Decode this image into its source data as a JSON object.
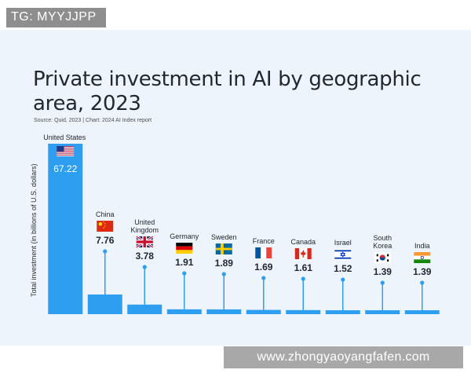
{
  "badge": {
    "text": "TG: MYYJJPP"
  },
  "watermark": {
    "text": "www.zhongyaoyangfafen.com"
  },
  "colors": {
    "bar": "#2e9ff0",
    "stem": "#2e9ff0",
    "card_bg": "#eef4fb",
    "text": "#222831"
  },
  "chart_data": {
    "type": "bar",
    "title": "Private investment in AI by geographic area, 2023",
    "subtitle": "Source: Quid, 2023 | Chart: 2024 AI Index report",
    "ylabel": "Total investment (in billions of U.S. dollars)",
    "xlabel": "",
    "ylim": [
      0,
      67.22
    ],
    "grid": false,
    "legend": "none",
    "categories": [
      "United States",
      "China",
      "United Kingdom",
      "Germany",
      "Sweden",
      "France",
      "Canada",
      "Israel",
      "South Korea",
      "India"
    ],
    "category_label_lines": [
      [
        "United States"
      ],
      [
        "China"
      ],
      [
        "United",
        "Kingdom"
      ],
      [
        "Germany"
      ],
      [
        "Sweden"
      ],
      [
        "France"
      ],
      [
        "Canada"
      ],
      [
        "Israel"
      ],
      [
        "South",
        "Korea"
      ],
      [
        "India"
      ]
    ],
    "values": [
      67.22,
      7.76,
      3.78,
      1.91,
      1.89,
      1.69,
      1.61,
      1.52,
      1.39,
      1.39
    ],
    "value_labels": [
      "67.22",
      "7.76",
      "3.78",
      "1.91",
      "1.89",
      "1.69",
      "1.61",
      "1.52",
      "1.39",
      "1.39"
    ],
    "flags": [
      "us-flag-icon",
      "china-flag-icon",
      "uk-flag-icon",
      "germany-flag-icon",
      "sweden-flag-icon",
      "france-flag-icon",
      "canada-flag-icon",
      "israel-flag-icon",
      "south-korea-flag-icon",
      "india-flag-icon"
    ]
  }
}
